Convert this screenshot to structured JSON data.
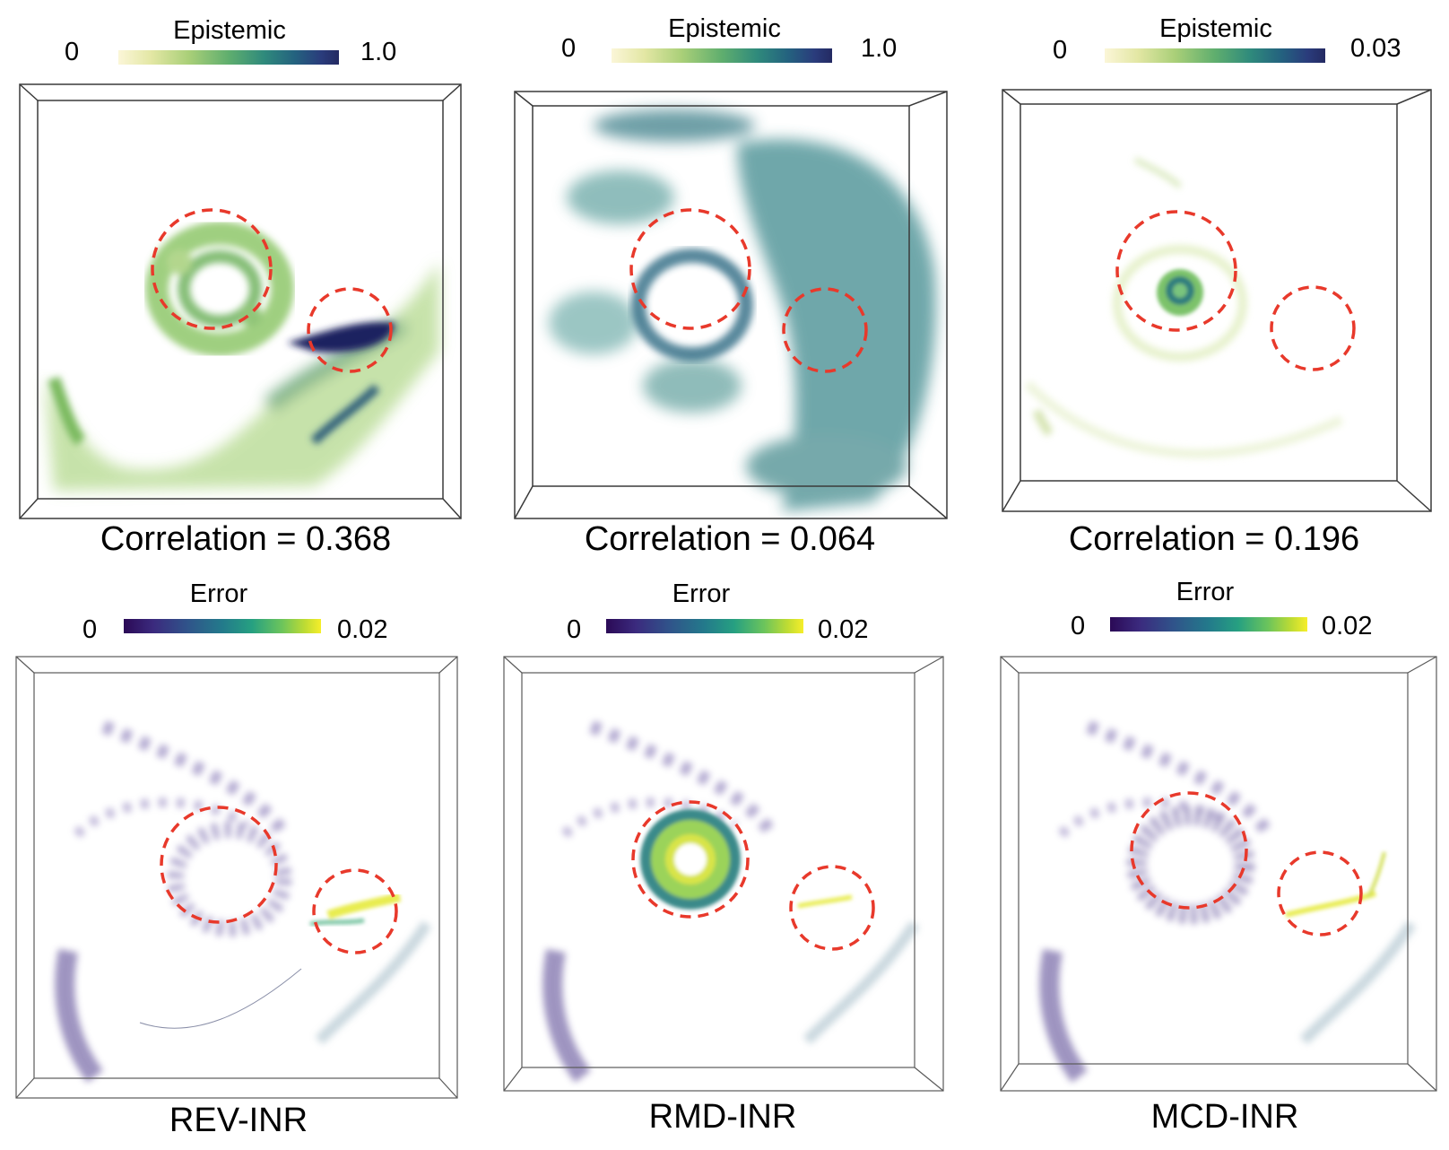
{
  "top_row": [
    {
      "colorbar_title": "Epistemic",
      "min": "0",
      "max": "1.0",
      "correlation": "Correlation = 0.368"
    },
    {
      "colorbar_title": "Epistemic",
      "min": "0",
      "max": "1.0",
      "correlation": "Correlation = 0.064"
    },
    {
      "colorbar_title": "Epistemic",
      "min": "0",
      "max": "0.03",
      "correlation": "Correlation = 0.196"
    }
  ],
  "bottom_row": [
    {
      "colorbar_title": "Error",
      "min": "0",
      "max": "0.02",
      "method": "REV-INR"
    },
    {
      "colorbar_title": "Error",
      "min": "0",
      "max": "0.02",
      "method": "RMD-INR"
    },
    {
      "colorbar_title": "Error",
      "min": "0",
      "max": "0.02",
      "method": "MCD-INR"
    }
  ],
  "colors": {
    "highlight_circle": "#e8392b",
    "box_frame": "#3a3a3a"
  }
}
